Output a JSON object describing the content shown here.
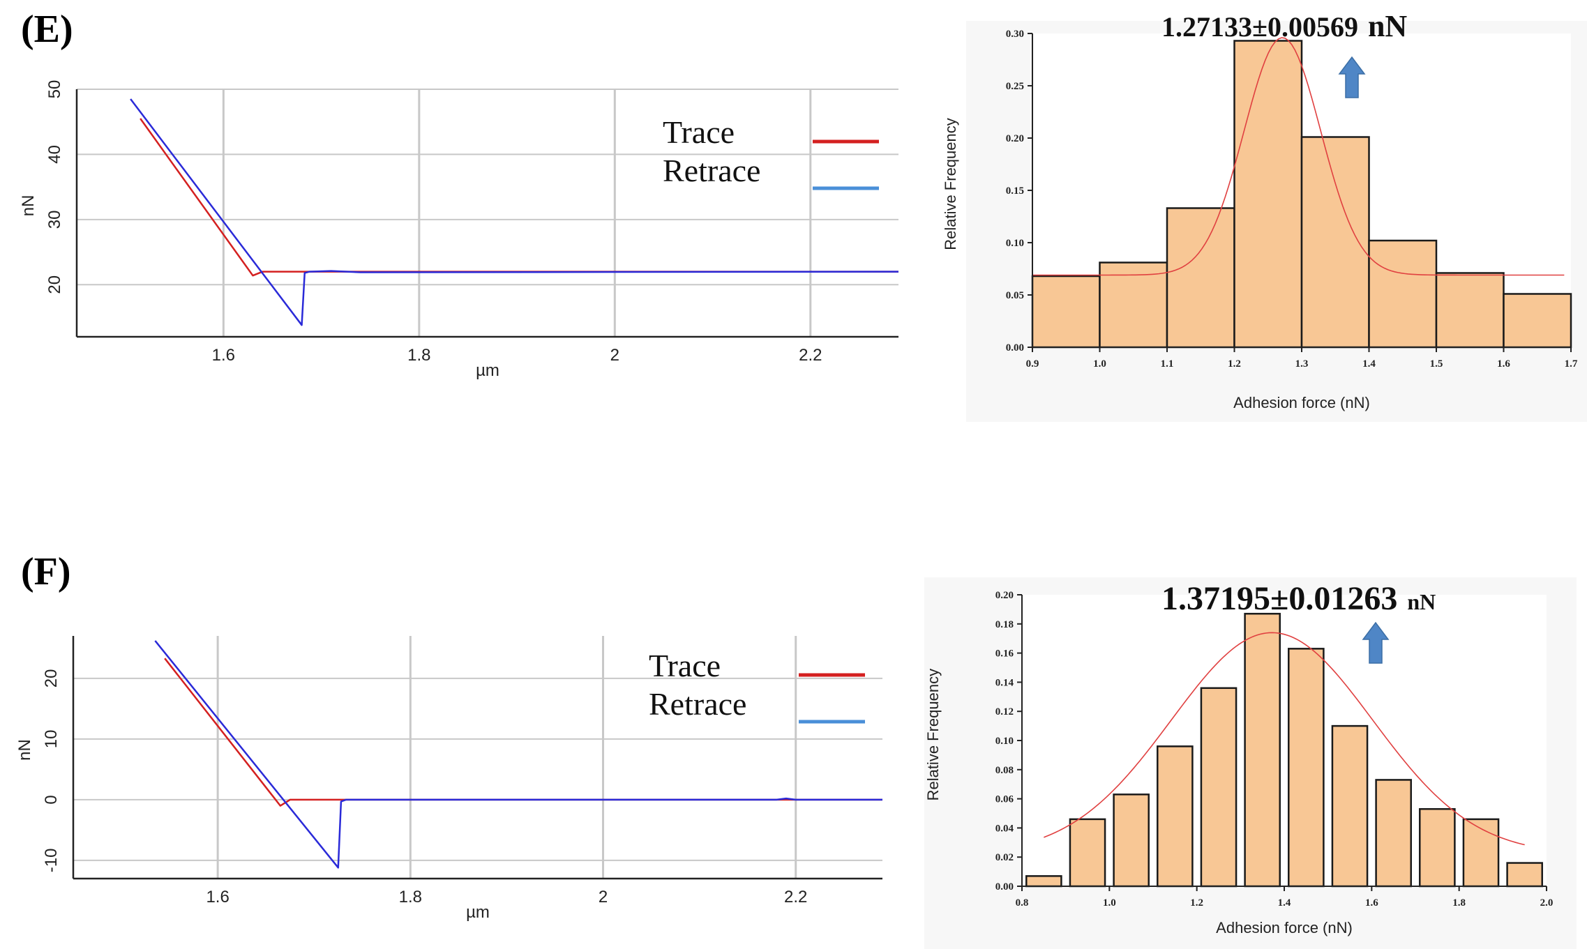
{
  "panels": [
    {
      "label": "(E)"
    },
    {
      "label": "(F)"
    }
  ],
  "chart_data": [
    {
      "id": "E-force-curve",
      "type": "line",
      "xlabel": "µm",
      "ylabel": "nN",
      "xlim": [
        1.45,
        2.29
      ],
      "ylim": [
        12,
        50
      ],
      "xticks": [
        1.6,
        1.8,
        2,
        2.2
      ],
      "xtick_labels": [
        "1.6",
        "1.8",
        "2",
        "2.2"
      ],
      "yticks": [
        20,
        30,
        40,
        50
      ],
      "ytick_labels": [
        "20",
        "30",
        "40",
        "50"
      ],
      "grid": true,
      "legend": {
        "position": "top-right",
        "entries": [
          {
            "name": "Trace",
            "color": "#d42020"
          },
          {
            "name": "Retrace",
            "color": "#4a8fd8"
          }
        ]
      },
      "series": [
        {
          "name": "Trace",
          "color": "#d42020",
          "x": [
            1.515,
            1.63,
            1.64,
            2.29
          ],
          "y": [
            45.5,
            21.4,
            22.0,
            22.0
          ]
        },
        {
          "name": "Retrace",
          "color": "#2a2ad8",
          "x": [
            1.505,
            1.68,
            1.683,
            1.688,
            1.71,
            1.74,
            2.29
          ],
          "y": [
            48.5,
            13.8,
            21.8,
            22.0,
            22.1,
            21.9,
            22.0
          ]
        }
      ]
    },
    {
      "id": "E-histogram",
      "type": "bar",
      "title": "1.27133±0.00569",
      "title_unit": "nN",
      "xlabel": "Adhesion force (nN)",
      "ylabel": "Relative Frequency",
      "xlim": [
        0.9,
        1.7
      ],
      "ylim": [
        0,
        0.3
      ],
      "xticks": [
        0.9,
        1.0,
        1.1,
        1.2,
        1.3,
        1.4,
        1.5,
        1.6,
        1.7
      ],
      "xtick_labels": [
        "0.9",
        "1.0",
        "1.1",
        "1.2",
        "1.3",
        "1.4",
        "1.5",
        "1.6",
        "1.7"
      ],
      "yticks": [
        0.0,
        0.05,
        0.1,
        0.15,
        0.2,
        0.25,
        0.3
      ],
      "ytick_labels": [
        "0.00",
        "0.05",
        "0.10",
        "0.15",
        "0.20",
        "0.25",
        "0.30"
      ],
      "bin_width": 0.1,
      "bars": [
        {
          "center": 0.95,
          "value": 0.068
        },
        {
          "center": 1.05,
          "value": 0.081
        },
        {
          "center": 1.15,
          "value": 0.133
        },
        {
          "center": 1.25,
          "value": 0.293
        },
        {
          "center": 1.35,
          "value": 0.201
        },
        {
          "center": 1.45,
          "value": 0.102
        },
        {
          "center": 1.55,
          "value": 0.071
        },
        {
          "center": 1.65,
          "value": 0.051
        }
      ],
      "fit": {
        "type": "gaussian",
        "center": 1.27133,
        "amplitude": 0.227,
        "sigma": 0.057,
        "offset": 0.069,
        "x_range": [
          0.9,
          1.69
        ]
      },
      "arrow_color": "#4f86c6"
    },
    {
      "id": "F-force-curve",
      "type": "line",
      "xlabel": "µm",
      "ylabel": "nN",
      "xlim": [
        1.45,
        2.29
      ],
      "ylim": [
        -13,
        27
      ],
      "xticks": [
        1.6,
        1.8,
        2,
        2.2
      ],
      "xtick_labels": [
        "1.6",
        "1.8",
        "2",
        "2.2"
      ],
      "yticks": [
        -10,
        0,
        10,
        20
      ],
      "ytick_labels": [
        "-10",
        "0",
        "10",
        "20"
      ],
      "grid": true,
      "legend": {
        "position": "top-right",
        "entries": [
          {
            "name": "Trace",
            "color": "#d42020"
          },
          {
            "name": "Retrace",
            "color": "#4a8fd8"
          }
        ]
      },
      "series": [
        {
          "name": "Trace",
          "color": "#d42020",
          "x": [
            1.545,
            1.665,
            1.675,
            2.29
          ],
          "y": [
            23.3,
            -1.0,
            0.0,
            0.0
          ]
        },
        {
          "name": "Retrace",
          "color": "#2a2ad8",
          "x": [
            1.535,
            1.725,
            1.728,
            1.733,
            2.18,
            2.19,
            2.2,
            2.29
          ],
          "y": [
            26.2,
            -11.2,
            -0.3,
            0.0,
            0.0,
            0.2,
            0.0,
            0.0
          ]
        }
      ]
    },
    {
      "id": "F-histogram",
      "type": "bar",
      "title": "1.37195±0.01263",
      "title_unit": "nN",
      "xlabel": "Adhesion force (nN)",
      "ylabel": "Relative Frequency",
      "xlim": [
        0.8,
        2.0
      ],
      "ylim": [
        0,
        0.2
      ],
      "xticks": [
        0.8,
        1.0,
        1.2,
        1.4,
        1.6,
        1.8,
        2.0
      ],
      "xtick_labels": [
        "0.8",
        "1.0",
        "1.2",
        "1.4",
        "1.6",
        "1.8",
        "2.0"
      ],
      "yticks": [
        0.0,
        0.02,
        0.04,
        0.06,
        0.08,
        0.1,
        0.12,
        0.14,
        0.16,
        0.18,
        0.2
      ],
      "ytick_labels": [
        "0.00",
        "0.02",
        "0.04",
        "0.06",
        "0.08",
        "0.10",
        "0.12",
        "0.14",
        "0.16",
        "0.18",
        "0.20"
      ],
      "bin_width": 0.08,
      "bars": [
        {
          "center": 0.85,
          "value": 0.007
        },
        {
          "center": 0.95,
          "value": 0.046
        },
        {
          "center": 1.05,
          "value": 0.063
        },
        {
          "center": 1.15,
          "value": 0.096
        },
        {
          "center": 1.25,
          "value": 0.136
        },
        {
          "center": 1.35,
          "value": 0.187
        },
        {
          "center": 1.45,
          "value": 0.163
        },
        {
          "center": 1.55,
          "value": 0.11
        },
        {
          "center": 1.65,
          "value": 0.073
        },
        {
          "center": 1.75,
          "value": 0.053
        },
        {
          "center": 1.85,
          "value": 0.046
        },
        {
          "center": 1.95,
          "value": 0.016
        }
      ],
      "fit": {
        "type": "gaussian",
        "center": 1.37195,
        "amplitude": 0.152,
        "sigma": 0.23,
        "offset": 0.022,
        "x_range": [
          0.85,
          1.95
        ]
      },
      "arrow_color": "#4f86c6"
    }
  ]
}
